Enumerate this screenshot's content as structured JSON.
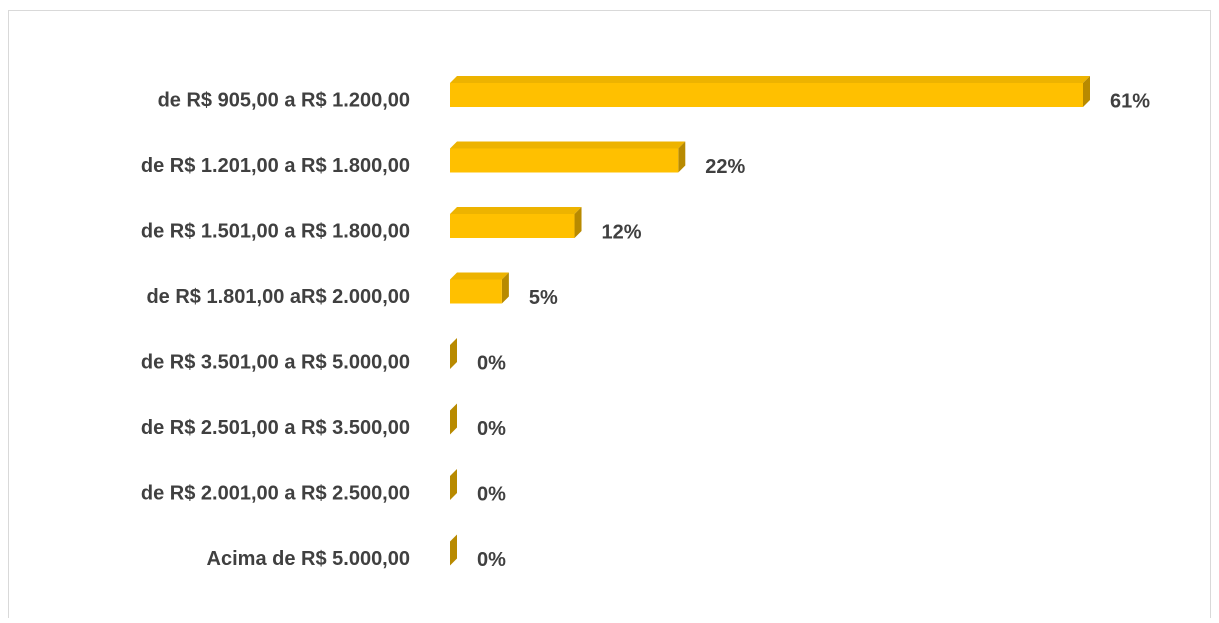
{
  "chart_data": {
    "type": "bar",
    "orientation": "horizontal",
    "three_d": true,
    "categories": [
      "de R$ 905,00 a R$ 1.200,00",
      "de R$ 1.201,00 a R$ 1.800,00",
      "de R$ 1.501,00 a R$ 1.800,00",
      "de R$ 1.801,00 aR$ 2.000,00",
      "de R$ 3.501,00 a R$ 5.000,00",
      "de R$ 2.501,00 a R$ 3.500,00",
      "de R$ 2.001,00 a R$ 2.500,00",
      "Acima de R$ 5.000,00"
    ],
    "values": [
      61,
      22,
      12,
      5,
      0,
      0,
      0,
      0
    ],
    "value_labels": [
      "61%",
      "22%",
      "12%",
      "5%",
      "0%",
      "0%",
      "0%",
      "0%"
    ],
    "color": "#ffc000"
  }
}
